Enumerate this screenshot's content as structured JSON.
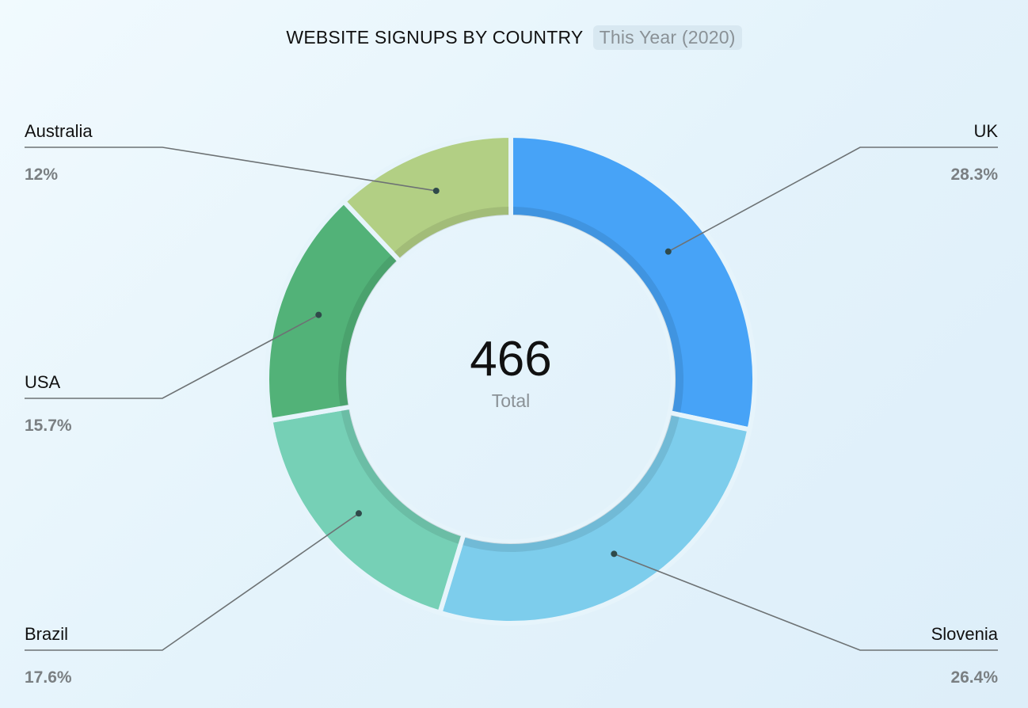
{
  "chart_data": {
    "type": "pie",
    "title": "WEBSITE SIGNUPS BY COUNTRY",
    "subtitle": "This Year (2020)",
    "donut": true,
    "center_value": "466",
    "center_label": "Total",
    "slices": [
      {
        "label": "UK",
        "value": 28.3,
        "display": "28.3%",
        "color": "#47a3f7"
      },
      {
        "label": "Slovenia",
        "value": 26.4,
        "display": "26.4%",
        "color": "#7dcdec"
      },
      {
        "label": "Brazil",
        "value": 17.6,
        "display": "17.6%",
        "color": "#76d0b6"
      },
      {
        "label": "USA",
        "value": 15.7,
        "display": "15.7%",
        "color": "#52b278"
      },
      {
        "label": "Australia",
        "value": 12,
        "display": "12%",
        "color": "#b2cf84"
      }
    ]
  }
}
